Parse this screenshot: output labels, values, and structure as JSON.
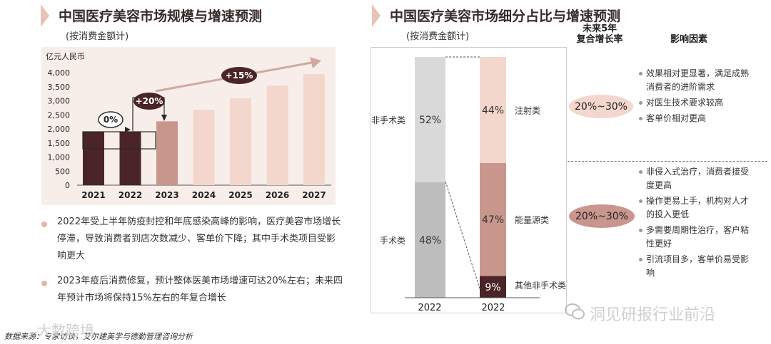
{
  "left": {
    "title": "中国医疗美容市场规模与增速预测",
    "subtitle": "(按消费金额计)",
    "bullets": [
      "2022年受上半年防疫封控和年底感染高峰的影响，医疗美容市场增长停滞，导致消费者到店次数减少、客单价下降；其中手术类项目受影响更大",
      "2023年疫后消费修复，预计整体医美市场增速可达20%左右；未来四年预计市场将保持15%左右的年复合增长"
    ]
  },
  "right": {
    "title": "中国医疗美容市场细分占比与增速预测",
    "subtitle": "(按消费金额计)",
    "header_growth": "未来5年\n复合增长率",
    "header_factors": "影响因素",
    "growth_1": "20%~30%",
    "growth_2": "20%~30%",
    "factors_1": [
      "效果相对更显著，满足成熟消费者的进阶需求",
      "对医生技术要求较高",
      "客单价相对更高"
    ],
    "factors_2": [
      "非侵入式治疗，消费者接受度更高",
      "操作更易上手，机构对人才的投入更低",
      "多需要周期性治疗，客户粘性更好",
      "引流项目多，客单价易受影响"
    ]
  },
  "footer": {
    "source": "数据来源：专家访谈，艾尔建美学与德勤管理咨询分析",
    "watermark_left": "大数跨境",
    "watermark_right": "洞见研报行业前沿"
  },
  "chart_data": [
    {
      "type": "bar",
      "title": "中国医疗美容市场规模与增速预测",
      "ylabel": "亿元人民币",
      "ylim": [
        0,
        4000
      ],
      "yticks": [
        "0",
        "500",
        "1,000",
        "1,500",
        "2,000",
        "2,500",
        "3,000",
        "3,500",
        "4,000"
      ],
      "ytick_values": [
        0,
        500,
        1000,
        1500,
        2000,
        2500,
        3000,
        3500,
        4000
      ],
      "categories": [
        "2021",
        "2022",
        "2023",
        "2024",
        "2025",
        "2026",
        "2027"
      ],
      "values": [
        1890,
        1890,
        2270,
        2680,
        3090,
        3540,
        3950
      ],
      "colors": [
        "#4a2426",
        "#4a2426",
        "#c9968d",
        "#f3d7cd",
        "#f3d7cd",
        "#f3d7cd",
        "#f3d7cd"
      ],
      "annotations": [
        "0%",
        "+20%",
        "+15%"
      ]
    },
    {
      "type": "stacked-bar",
      "title": "中国医疗美容市场细分占比与增速预测",
      "categories": [
        "2022",
        "2022"
      ],
      "bar1": [
        {
          "name": "手术类",
          "label": "48%",
          "value": 48,
          "color": "#bdbdbd"
        },
        {
          "name": "非手术类",
          "label": "52%",
          "value": 52,
          "color": "#d9d9d9"
        }
      ],
      "bar2": [
        {
          "name": "其他非手术类",
          "label": "9%",
          "value": 9,
          "color": "#4a2426",
          "text_color": "#ffffff"
        },
        {
          "name": "能量源类",
          "label": "47%",
          "value": 47,
          "color": "#c9968d",
          "text_color": "#333333"
        },
        {
          "name": "注射类",
          "label": "44%",
          "value": 44,
          "color": "#f3d7cd",
          "text_color": "#333333"
        }
      ]
    }
  ]
}
